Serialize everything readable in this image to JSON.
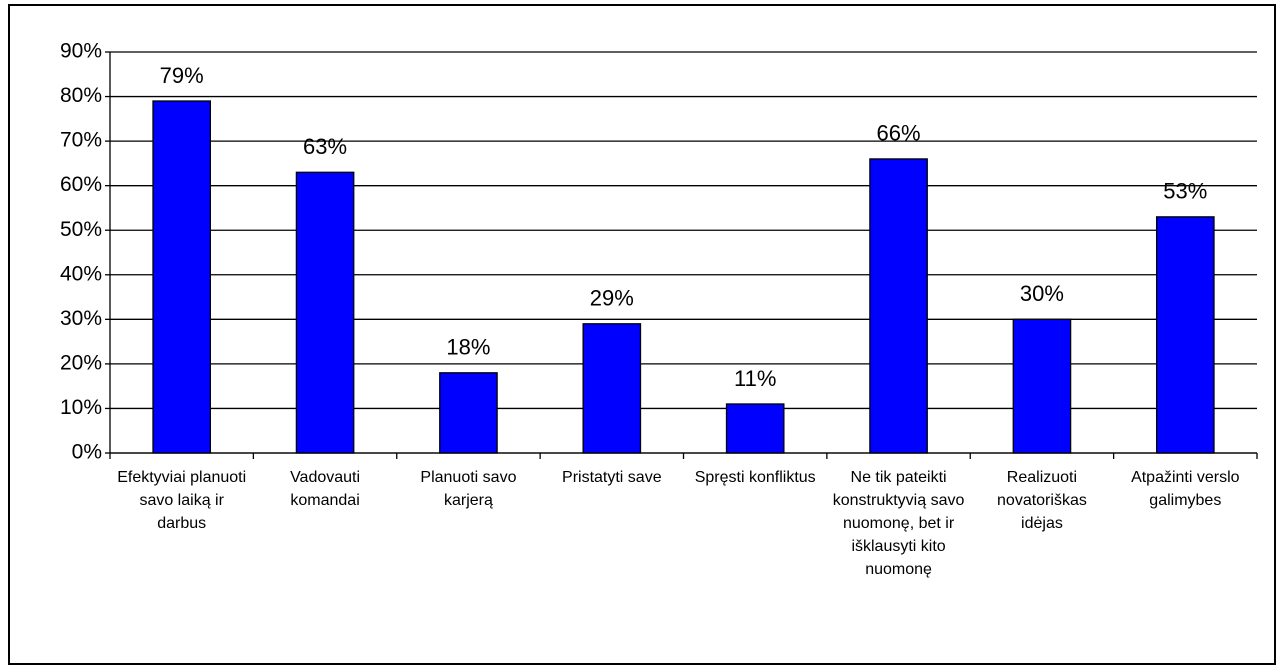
{
  "chart_data": {
    "type": "bar",
    "categories": [
      "Efektyviai planuoti savo laiką ir darbus",
      "Vadovauti komandai",
      "Planuoti savo karjerą",
      "Pristatyti save",
      "Spręsti konfliktus",
      "Ne tik pateikti konstruktyvią savo nuomonę, bet ir išklausyti kito nuomonę",
      "Realizuoti novatoriškas idėjas",
      "Atpažinti verslo galimybes"
    ],
    "values": [
      79,
      63,
      18,
      29,
      11,
      66,
      30,
      53
    ],
    "value_labels": [
      "79%",
      "63%",
      "18%",
      "29%",
      "11%",
      "66%",
      "30%",
      "53%"
    ],
    "color": "#0000ff",
    "ylim": [
      0,
      90
    ],
    "yticks": [
      {
        "value": 0,
        "label": "0%"
      },
      {
        "value": 10,
        "label": "10%"
      },
      {
        "value": 20,
        "label": "20%"
      },
      {
        "value": 30,
        "label": "30%"
      },
      {
        "value": 40,
        "label": "40%"
      },
      {
        "value": 50,
        "label": "50%"
      },
      {
        "value": 60,
        "label": "60%"
      },
      {
        "value": 70,
        "label": "70%"
      },
      {
        "value": 80,
        "label": "80%"
      },
      {
        "value": 90,
        "label": "90%"
      }
    ],
    "grid": true
  }
}
